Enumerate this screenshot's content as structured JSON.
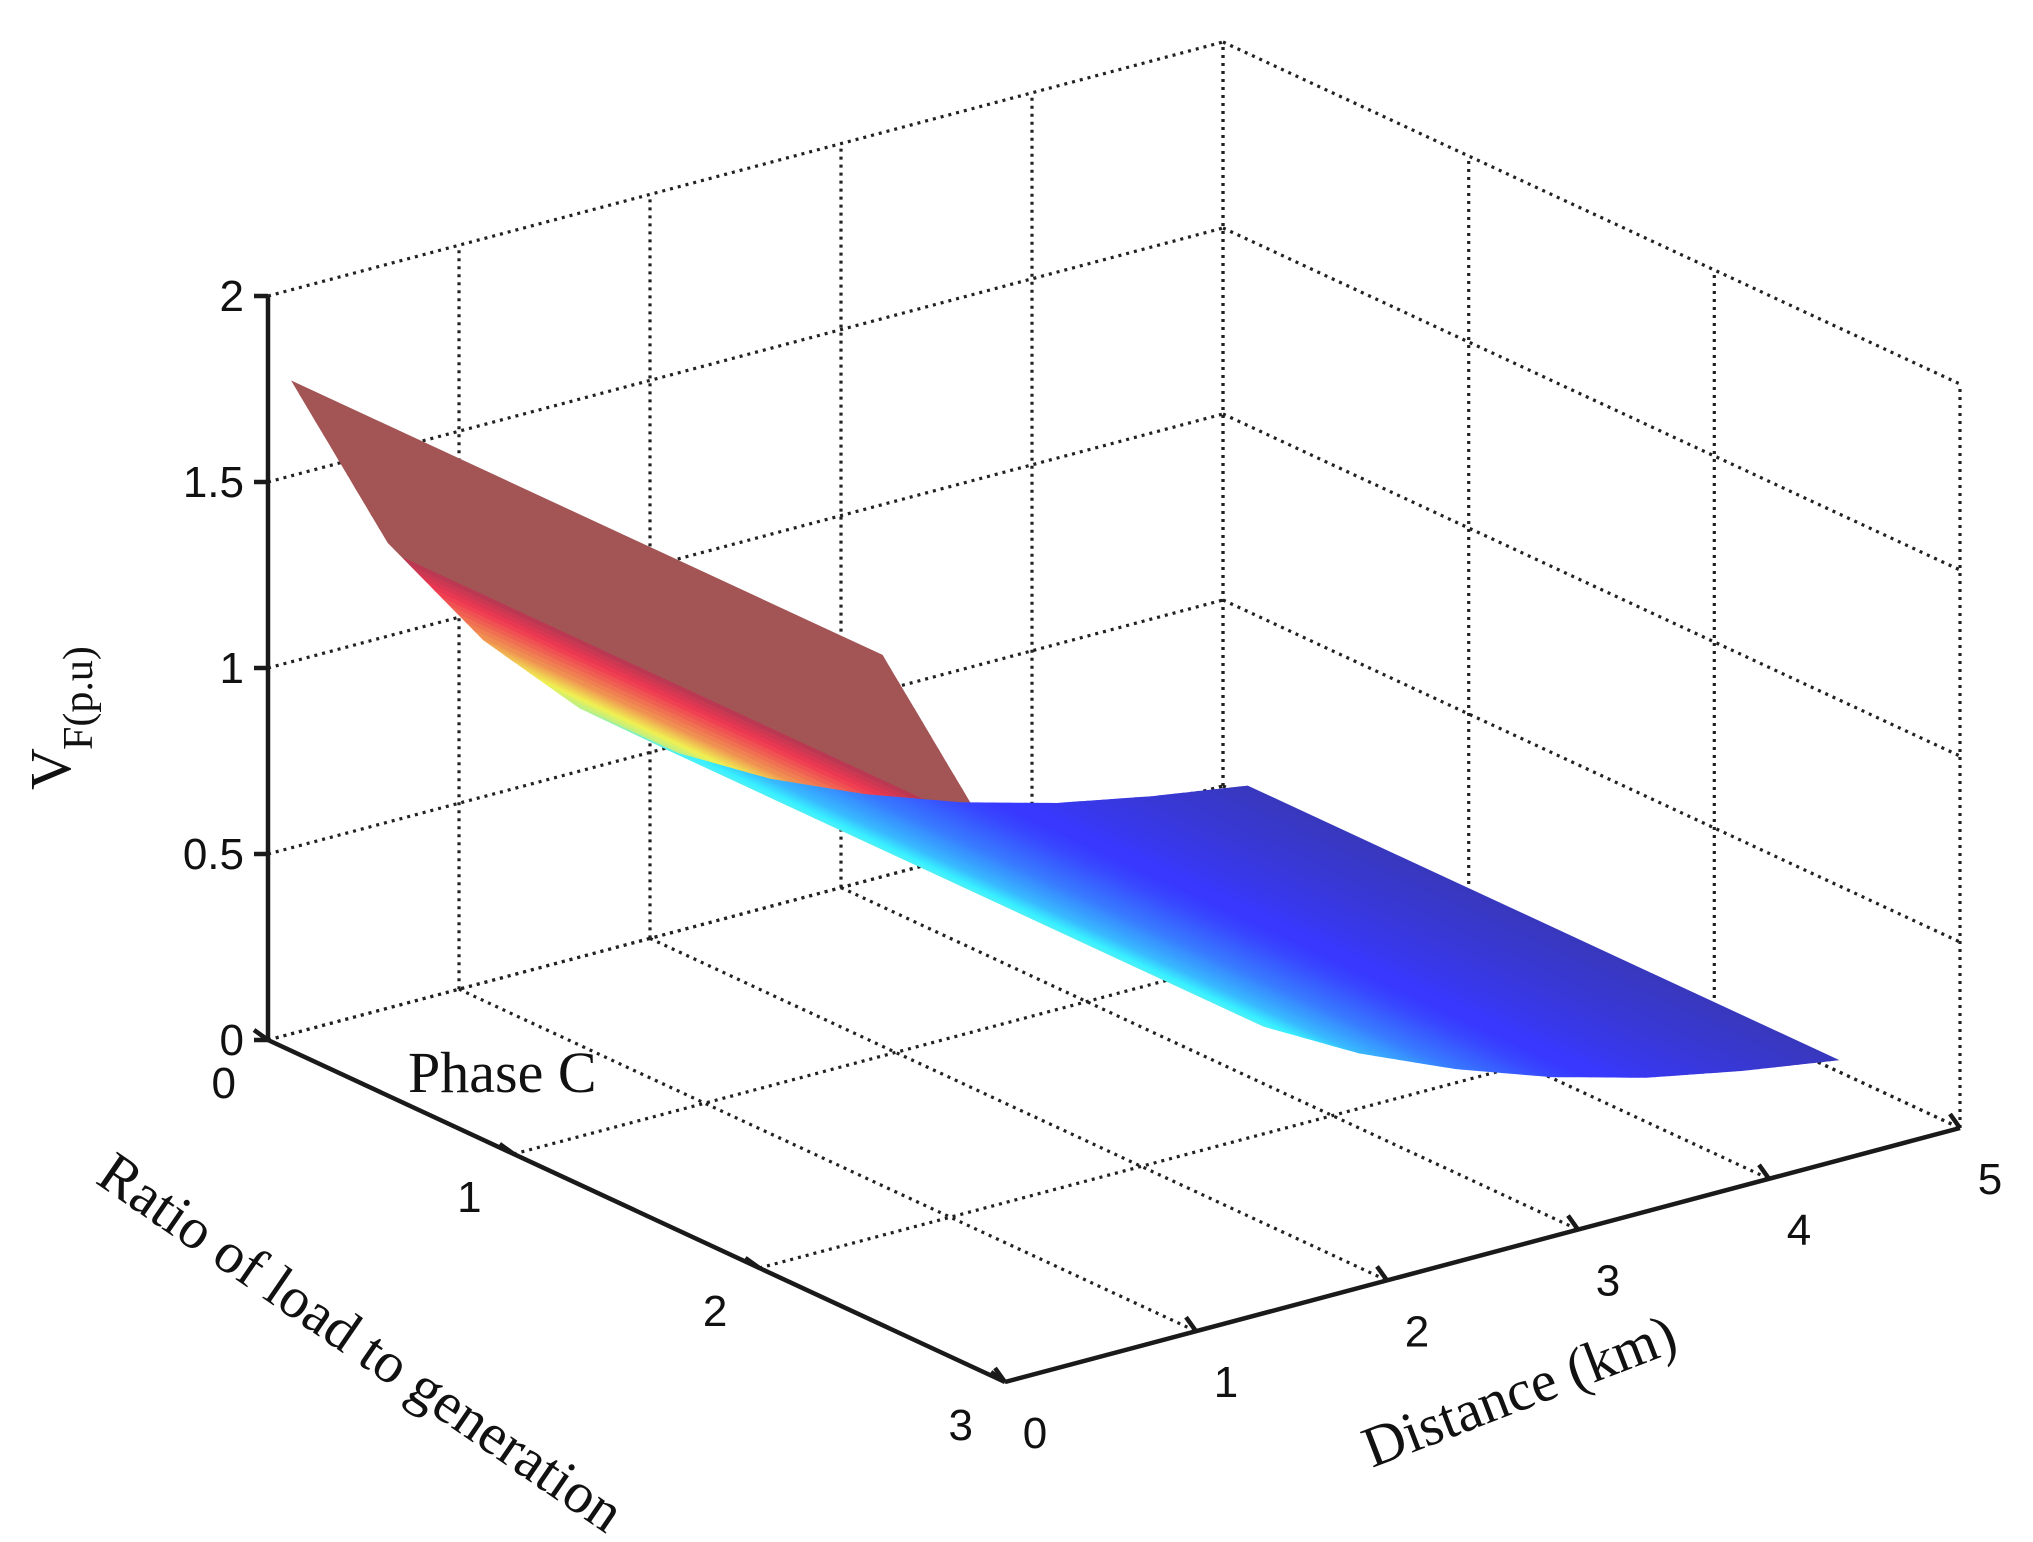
{
  "chart_data": {
    "type": "surface",
    "annotation": "Phase C",
    "xlabel": "Distance (km)",
    "ylabel": "Ratio of load to generation",
    "zlabel_main": "V",
    "zlabel_sub": "F(p.u)",
    "xlim": [
      0,
      5
    ],
    "ylim": [
      0,
      3
    ],
    "zlim": [
      0,
      2
    ],
    "xticks": [
      "0",
      "1",
      "2",
      "3",
      "4",
      "5"
    ],
    "yticks": [
      "0",
      "1",
      "2",
      "3"
    ],
    "zticks": [
      "0",
      "0.5",
      "1",
      "1.5",
      "2"
    ],
    "grid": true,
    "colormap": "jet",
    "surface_x_range": [
      0,
      5
    ],
    "surface_y_range": [
      0.1,
      2.5
    ],
    "z_profile": {
      "description_points": [
        {
          "x": 0,
          "z": 1.8
        },
        {
          "x": 0.5,
          "z": 1.3
        },
        {
          "x": 1,
          "z": 0.97
        },
        {
          "x": 1.5,
          "z": 0.72
        },
        {
          "x": 2,
          "z": 0.53
        },
        {
          "x": 2.5,
          "z": 0.39
        },
        {
          "x": 3,
          "z": 0.28
        },
        {
          "x": 3.5,
          "z": 0.19
        },
        {
          "x": 4,
          "z": 0.12
        },
        {
          "x": 4.5,
          "z": 0.07
        },
        {
          "x": 5,
          "z": 0.03
        }
      ]
    }
  }
}
